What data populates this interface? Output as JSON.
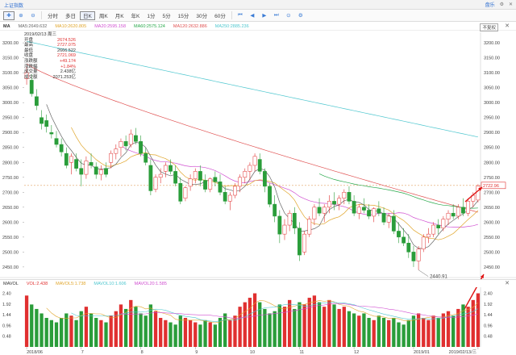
{
  "window": {
    "title": "上证指数",
    "right_label": "盘乐"
  },
  "toolbar": {
    "items": [
      "分时",
      "多日",
      "日K",
      "周K",
      "月K",
      "年K",
      "1分",
      "5分",
      "15分",
      "30分",
      "60分"
    ],
    "active": "日K"
  },
  "ma_legend": [
    {
      "label": "MA5",
      "value": "2649.632",
      "color": "#666666"
    },
    {
      "label": "MA10",
      "value": "2620.805",
      "color": "#e0a52a"
    },
    {
      "label": "MA20",
      "value": "2595.158",
      "color": "#d04fd0"
    },
    {
      "label": "MA60",
      "value": "2575.124",
      "color": "#27a84a"
    },
    {
      "label": "MA120",
      "value": "2632.886",
      "color": "#e05050"
    },
    {
      "label": "MA250",
      "value": "2885.236",
      "color": "#4fc7cf"
    }
  ],
  "restore_label": "不复权",
  "info": {
    "date": "2019/02/13 周三",
    "rows": [
      {
        "k": "开盘",
        "v": "2674.526",
        "c": "#e03030"
      },
      {
        "k": "最高",
        "v": "2727.075",
        "c": "#e03030"
      },
      {
        "k": "最低",
        "v": "2666.522",
        "c": "#333333"
      },
      {
        "k": "收盘",
        "v": "2721.069",
        "c": "#e03030"
      },
      {
        "k": "涨跌额",
        "v": "+49.174",
        "c": "#e03030"
      },
      {
        "k": "涨跌幅",
        "v": "+1.84%",
        "c": "#e03030"
      },
      {
        "k": "成交量",
        "v": "2.438亿",
        "c": "#333333"
      },
      {
        "k": "成交额",
        "v": "2071.253亿",
        "c": "#333333"
      }
    ]
  },
  "price_axis": [
    "3200.00",
    "3150.00",
    "3100.00",
    "3050.00",
    "3000.00",
    "2950.00",
    "2900.00",
    "2850.00",
    "2800.00",
    "2750.00",
    "2700.00",
    "2650.00",
    "2600.00",
    "2550.00",
    "2500.00",
    "2450.00"
  ],
  "current_price": "2722.96",
  "low_label": "2440.91",
  "vol_legend": [
    {
      "label": "MAVOL",
      "value": "",
      "color": "#333333"
    },
    {
      "label": "VOL",
      "value": "2.438",
      "color": "#e03030"
    },
    {
      "label": "MAVOL5",
      "value": "1.738",
      "color": "#e0a52a"
    },
    {
      "label": "MAVOL10",
      "value": "1.606",
      "color": "#4fc7cf"
    },
    {
      "label": "MAVOL20",
      "value": "1.585",
      "color": "#d04fd0"
    }
  ],
  "vol_axis": [
    "2.40",
    "1.92",
    "1.44",
    "0.96",
    "0.48"
  ],
  "date_axis": [
    "2018/06",
    "7",
    "8",
    "9",
    "10",
    "11",
    "12",
    "2019/01",
    "2019/02/13/三"
  ],
  "chart_data": {
    "type": "candlestick",
    "ylim": [
      2420,
      3230
    ],
    "candles": [
      [
        3080,
        3120,
        3060,
        3100
      ],
      [
        3075,
        3095,
        3020,
        3030
      ],
      [
        3020,
        3045,
        2975,
        2990
      ],
      [
        2950,
        2975,
        2910,
        2930
      ],
      [
        2940,
        2960,
        2900,
        2920
      ],
      [
        2900,
        2925,
        2880,
        2895
      ],
      [
        2880,
        2905,
        2850,
        2860
      ],
      [
        2860,
        2880,
        2820,
        2835
      ],
      [
        2830,
        2850,
        2780,
        2790
      ],
      [
        2800,
        2830,
        2760,
        2820
      ],
      [
        2810,
        2830,
        2770,
        2780
      ],
      [
        2780,
        2810,
        2720,
        2760
      ],
      [
        2760,
        2820,
        2745,
        2805
      ],
      [
        2800,
        2830,
        2780,
        2790
      ],
      [
        2785,
        2800,
        2745,
        2760
      ],
      [
        2760,
        2790,
        2740,
        2775
      ],
      [
        2780,
        2800,
        2750,
        2760
      ],
      [
        2800,
        2840,
        2780,
        2830
      ],
      [
        2830,
        2860,
        2810,
        2845
      ],
      [
        2850,
        2880,
        2820,
        2870
      ],
      [
        2870,
        2890,
        2840,
        2855
      ],
      [
        2860,
        2910,
        2850,
        2895
      ],
      [
        2890,
        2915,
        2860,
        2870
      ],
      [
        2870,
        2890,
        2820,
        2830
      ],
      [
        2830,
        2850,
        2790,
        2800
      ],
      [
        2790,
        2810,
        2690,
        2705
      ],
      [
        2710,
        2760,
        2700,
        2750
      ],
      [
        2750,
        2780,
        2730,
        2760
      ],
      [
        2770,
        2800,
        2750,
        2790
      ],
      [
        2790,
        2810,
        2760,
        2770
      ],
      [
        2770,
        2790,
        2720,
        2730
      ],
      [
        2730,
        2750,
        2660,
        2670
      ],
      [
        2680,
        2720,
        2670,
        2715
      ],
      [
        2720,
        2760,
        2705,
        2745
      ],
      [
        2745,
        2780,
        2730,
        2770
      ],
      [
        2770,
        2790,
        2720,
        2740
      ],
      [
        2740,
        2760,
        2700,
        2710
      ],
      [
        2710,
        2750,
        2700,
        2745
      ],
      [
        2750,
        2770,
        2720,
        2735
      ],
      [
        2735,
        2760,
        2690,
        2700
      ],
      [
        2700,
        2720,
        2660,
        2670
      ],
      [
        2670,
        2700,
        2640,
        2690
      ],
      [
        2690,
        2730,
        2680,
        2720
      ],
      [
        2720,
        2760,
        2700,
        2750
      ],
      [
        2750,
        2780,
        2730,
        2770
      ],
      [
        2770,
        2800,
        2740,
        2790
      ],
      [
        2790,
        2830,
        2770,
        2820
      ],
      [
        2810,
        2830,
        2760,
        2770
      ],
      [
        2770,
        2780,
        2700,
        2720
      ],
      [
        2720,
        2730,
        2650,
        2660
      ],
      [
        2660,
        2690,
        2600,
        2620
      ],
      [
        2620,
        2640,
        2530,
        2560
      ],
      [
        2560,
        2610,
        2540,
        2590
      ],
      [
        2590,
        2640,
        2570,
        2630
      ],
      [
        2630,
        2650,
        2560,
        2580
      ],
      [
        2580,
        2600,
        2470,
        2490
      ],
      [
        2500,
        2570,
        2490,
        2560
      ],
      [
        2560,
        2620,
        2550,
        2610
      ],
      [
        2610,
        2660,
        2590,
        2650
      ],
      [
        2650,
        2680,
        2620,
        2630
      ],
      [
        2630,
        2660,
        2600,
        2650
      ],
      [
        2650,
        2690,
        2630,
        2670
      ],
      [
        2670,
        2700,
        2640,
        2660
      ],
      [
        2660,
        2690,
        2640,
        2680
      ],
      [
        2680,
        2710,
        2660,
        2700
      ],
      [
        2700,
        2720,
        2660,
        2670
      ],
      [
        2670,
        2690,
        2620,
        2630
      ],
      [
        2630,
        2660,
        2610,
        2650
      ],
      [
        2650,
        2680,
        2630,
        2640
      ],
      [
        2640,
        2660,
        2610,
        2620
      ],
      [
        2620,
        2650,
        2600,
        2645
      ],
      [
        2645,
        2670,
        2620,
        2630
      ],
      [
        2630,
        2650,
        2590,
        2600
      ],
      [
        2600,
        2630,
        2580,
        2620
      ],
      [
        2620,
        2640,
        2560,
        2570
      ],
      [
        2570,
        2600,
        2530,
        2550
      ],
      [
        2550,
        2580,
        2520,
        2530
      ],
      [
        2530,
        2560,
        2480,
        2500
      ],
      [
        2500,
        2520,
        2450,
        2470
      ],
      [
        2470,
        2520,
        2440,
        2510
      ],
      [
        2510,
        2560,
        2500,
        2550
      ],
      [
        2550,
        2580,
        2530,
        2560
      ],
      [
        2560,
        2600,
        2550,
        2590
      ],
      [
        2590,
        2610,
        2560,
        2580
      ],
      [
        2580,
        2620,
        2570,
        2610
      ],
      [
        2610,
        2640,
        2590,
        2630
      ],
      [
        2630,
        2660,
        2610,
        2620
      ],
      [
        2620,
        2660,
        2610,
        2650
      ],
      [
        2650,
        2680,
        2620,
        2630
      ],
      [
        2630,
        2680,
        2620,
        2670
      ],
      [
        2670,
        2700,
        2650,
        2690
      ],
      [
        2674,
        2727,
        2666,
        2721
      ]
    ],
    "volume": [
      2.3,
      1.9,
      1.7,
      1.5,
      1.3,
      1.2,
      1.1,
      1.3,
      1.5,
      1.4,
      1.2,
      1.6,
      1.8,
      1.5,
      1.3,
      1.2,
      1.1,
      1.4,
      1.6,
      1.9,
      1.7,
      2.1,
      1.8,
      1.5,
      1.4,
      1.9,
      1.6,
      1.3,
      1.2,
      1.1,
      1.0,
      1.4,
      1.3,
      1.2,
      1.1,
      1.0,
      1.2,
      1.1,
      1.0,
      1.3,
      1.5,
      1.2,
      1.4,
      1.8,
      2.0,
      2.2,
      2.4,
      2.0,
      1.7,
      1.5,
      1.6,
      1.9,
      1.8,
      2.1,
      1.7,
      2.0,
      1.9,
      2.2,
      2.3,
      2.0,
      1.8,
      2.1,
      1.9,
      1.7,
      1.8,
      1.6,
      1.5,
      1.4,
      1.5,
      1.3,
      1.2,
      1.4,
      1.3,
      1.2,
      1.3,
      1.1,
      1.0,
      1.2,
      1.4,
      1.5,
      1.3,
      1.2,
      1.4,
      1.3,
      1.5,
      1.6,
      1.4,
      1.7,
      1.9,
      1.8,
      2.1,
      2.4
    ]
  }
}
